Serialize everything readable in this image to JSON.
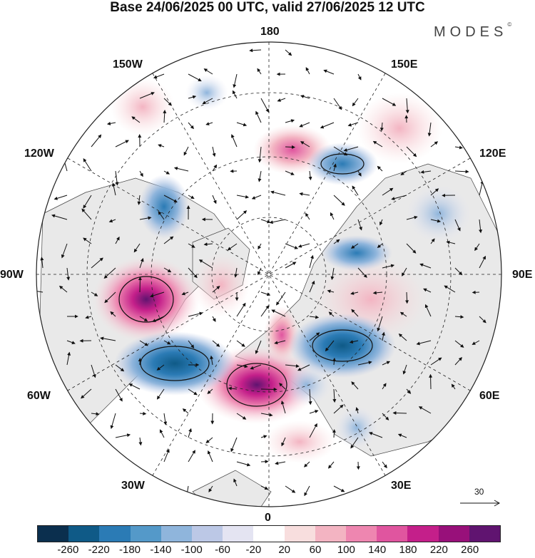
{
  "header": {
    "title": "Base 24/06/2025 00 UTC, valid 27/06/2025 12 UTC",
    "brand": "MODES",
    "brand_mark": "©"
  },
  "map": {
    "projection": "north-polar-stereographic",
    "longitude_labels": {
      "top": "180",
      "top_left": "150W",
      "top_right": "150E",
      "upper_left": "120W",
      "upper_right": "120E",
      "left": "90W",
      "right": "90E",
      "lower_left": "60W",
      "lower_right": "60E",
      "bottom_left": "30W",
      "bottom_right": "30E",
      "bottom": "0"
    },
    "field_description": "geopotential height anomaly with wind vectors",
    "reference_vector": "30"
  },
  "colorbar": {
    "colors": [
      "#0b2f4e",
      "#0f5a87",
      "#2b7bb5",
      "#5499c9",
      "#8fb5dc",
      "#bcc8e6",
      "#e4e4f2",
      "#ffffff",
      "#f8dede",
      "#f3b4c2",
      "#ee86b0",
      "#e0559f",
      "#c41f8a",
      "#98107a",
      "#601470"
    ],
    "tick_labels": [
      "-260",
      "-220",
      "-180",
      "-140",
      "-100",
      "-60",
      "-20",
      "20",
      "60",
      "100",
      "140",
      "180",
      "220",
      "260"
    ]
  }
}
